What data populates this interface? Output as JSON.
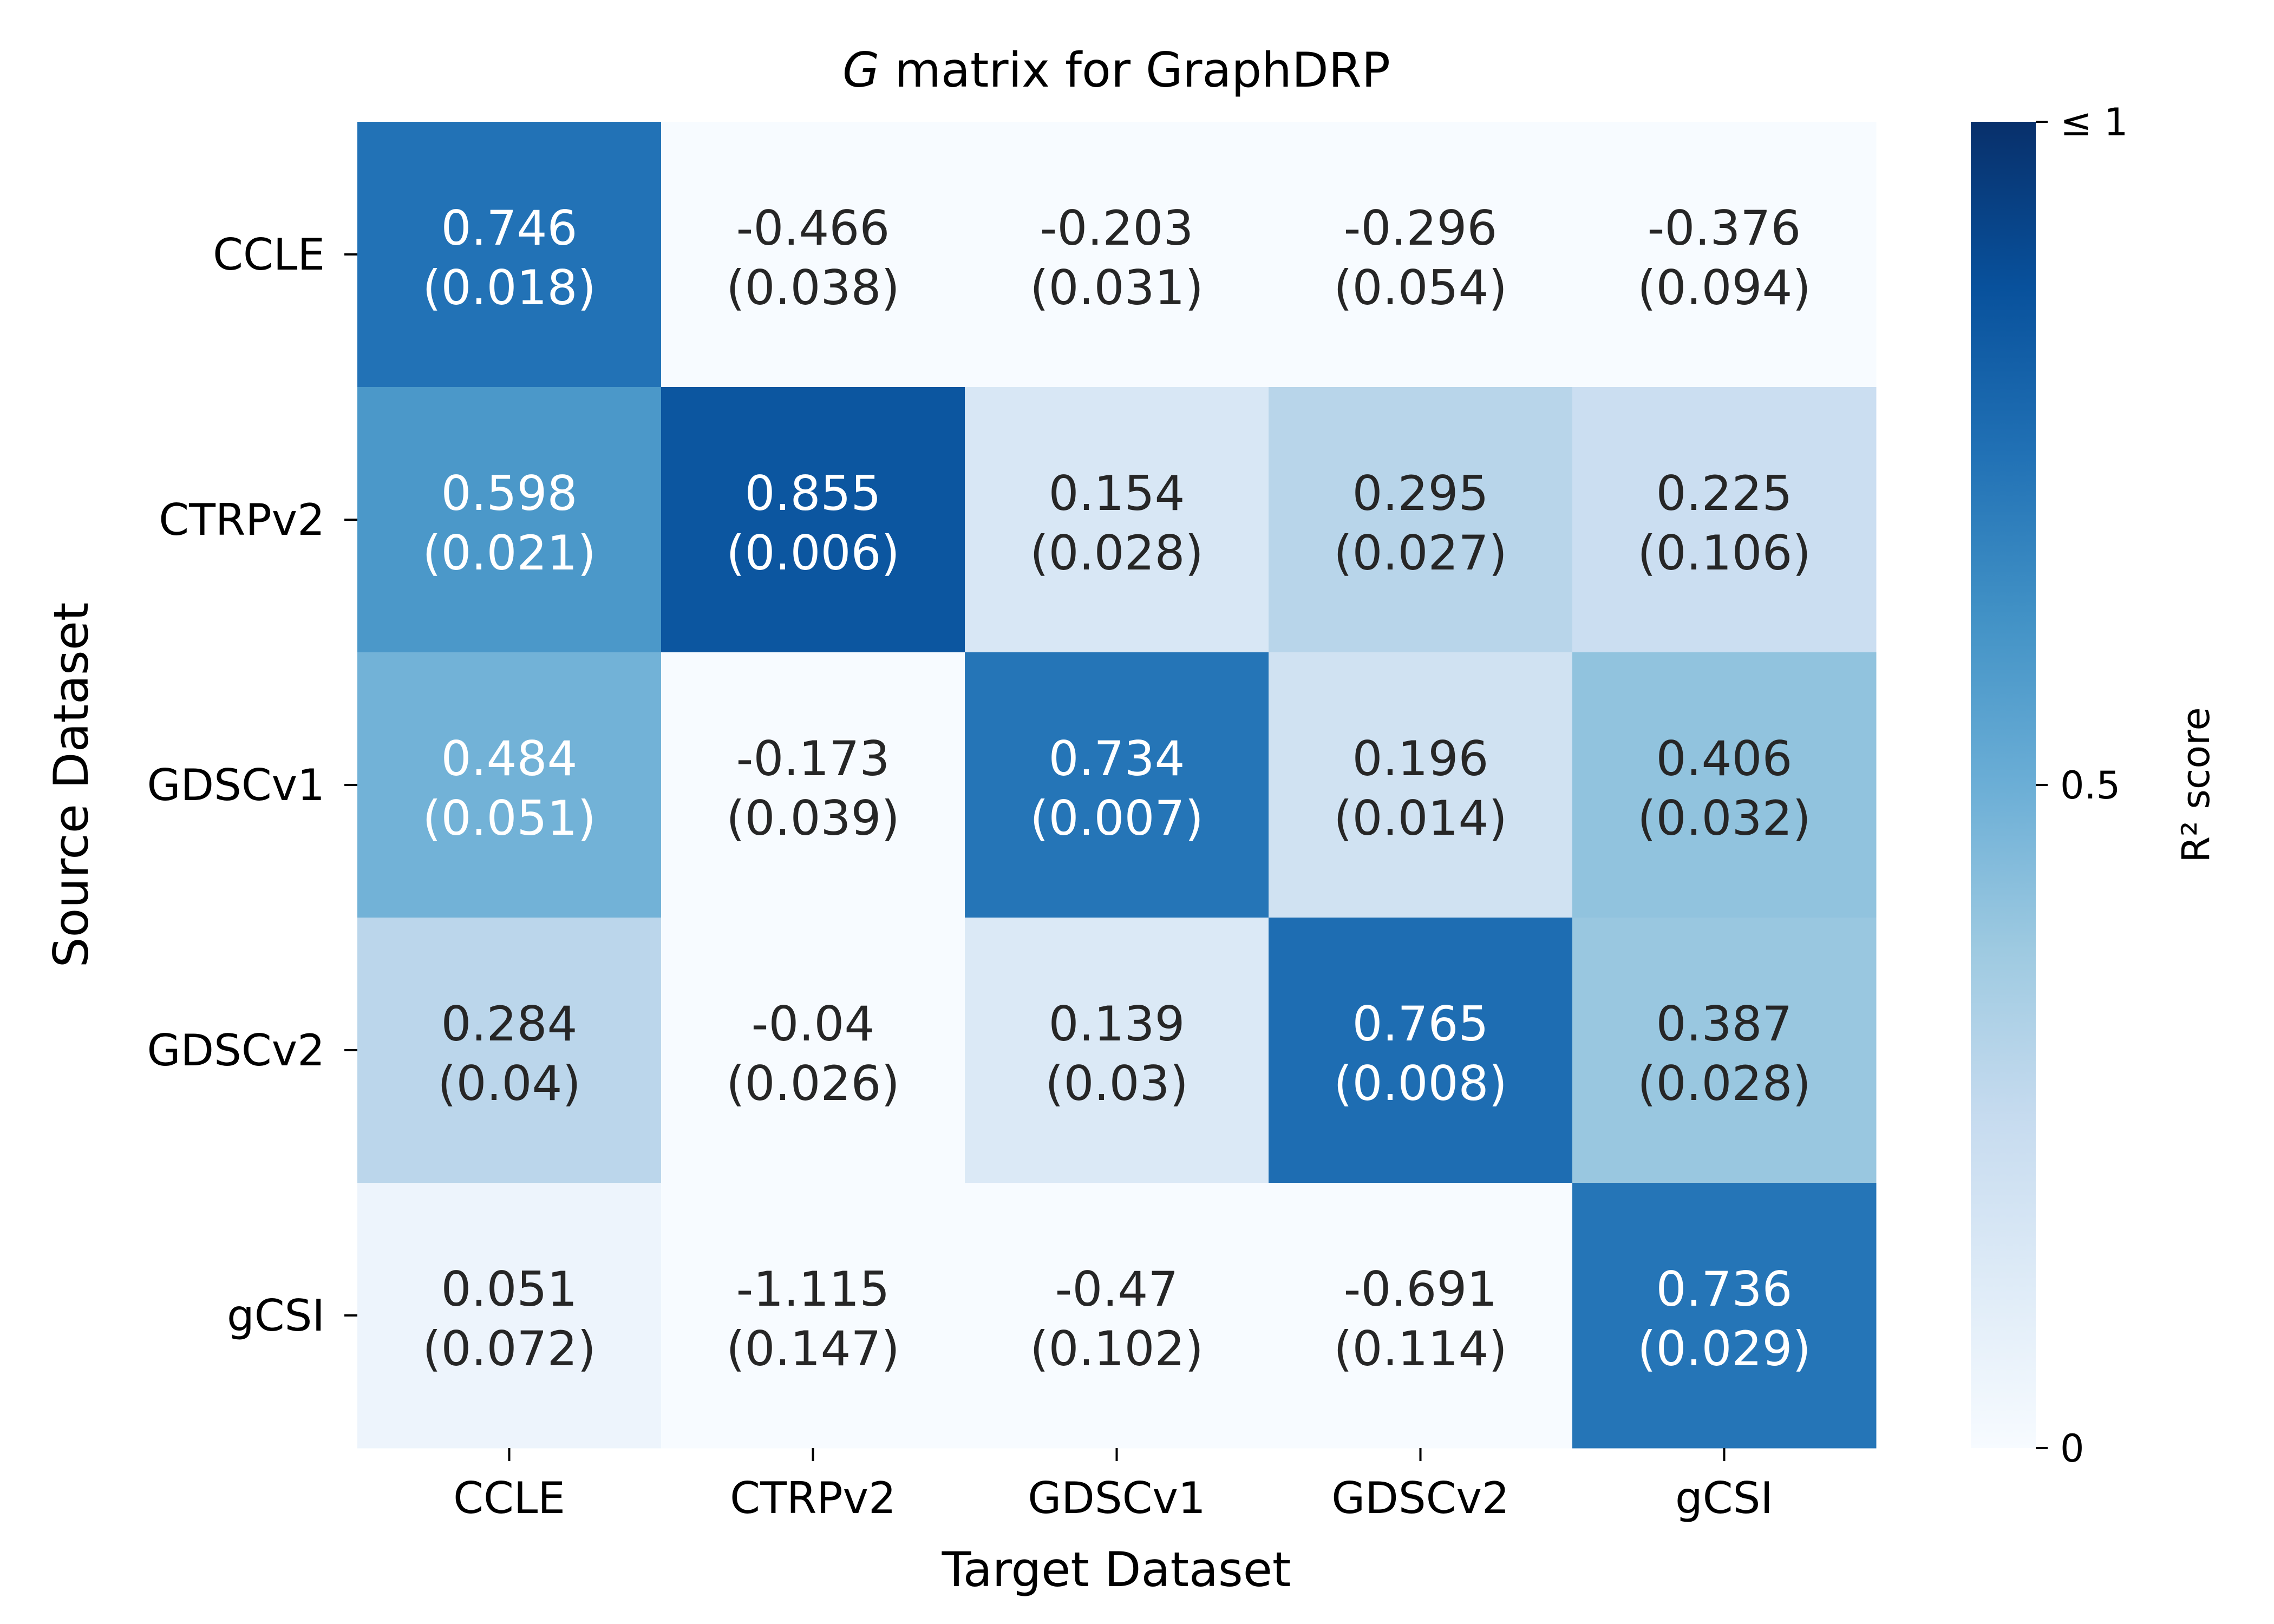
{
  "chart_data": {
    "type": "heatmap",
    "title_italic": "G",
    "title_rest": " matrix for GraphDRP",
    "xlabel": "Target Dataset",
    "ylabel": "Source Dataset",
    "x_categories": [
      "CCLE",
      "CTRPv2",
      "GDSCv1",
      "GDSCv2",
      "gCSI"
    ],
    "y_categories": [
      "CCLE",
      "CTRPv2",
      "GDSCv1",
      "GDSCv2",
      "gCSI"
    ],
    "values": [
      [
        0.746,
        -0.466,
        -0.203,
        -0.296,
        -0.376
      ],
      [
        0.598,
        0.855,
        0.154,
        0.295,
        0.225
      ],
      [
        0.484,
        -0.173,
        0.734,
        0.196,
        0.406
      ],
      [
        0.284,
        -0.04,
        0.139,
        0.765,
        0.387
      ],
      [
        0.051,
        -1.115,
        -0.47,
        -0.691,
        0.736
      ]
    ],
    "values_label": [
      "0.746",
      "-0.466",
      "-0.203",
      "-0.296",
      "-0.376",
      "0.598",
      "0.855",
      "0.154",
      "0.295",
      "0.225",
      "0.484",
      "-0.173",
      "0.734",
      "0.196",
      "0.406",
      "0.284",
      "-0.04",
      "0.139",
      "0.765",
      "0.387",
      "0.051",
      "-1.115",
      "-0.47",
      "-0.691",
      "0.736"
    ],
    "std_label": [
      "(0.018)",
      "(0.038)",
      "(0.031)",
      "(0.054)",
      "(0.094)",
      "(0.021)",
      "(0.006)",
      "(0.028)",
      "(0.027)",
      "(0.106)",
      "(0.051)",
      "(0.039)",
      "(0.007)",
      "(0.014)",
      "(0.032)",
      "(0.04)",
      "(0.026)",
      "(0.03)",
      "(0.008)",
      "(0.028)",
      "(0.072)",
      "(0.147)",
      "(0.102)",
      "(0.114)",
      "(0.029)"
    ],
    "colormap": "Blues",
    "vmin": 0,
    "vmax": 1,
    "colorbar": {
      "label": "R² score",
      "ticks": [
        0,
        0.5,
        1
      ],
      "tick_labels": [
        "0",
        "0.5",
        "≤ 1"
      ]
    },
    "grid": false
  }
}
